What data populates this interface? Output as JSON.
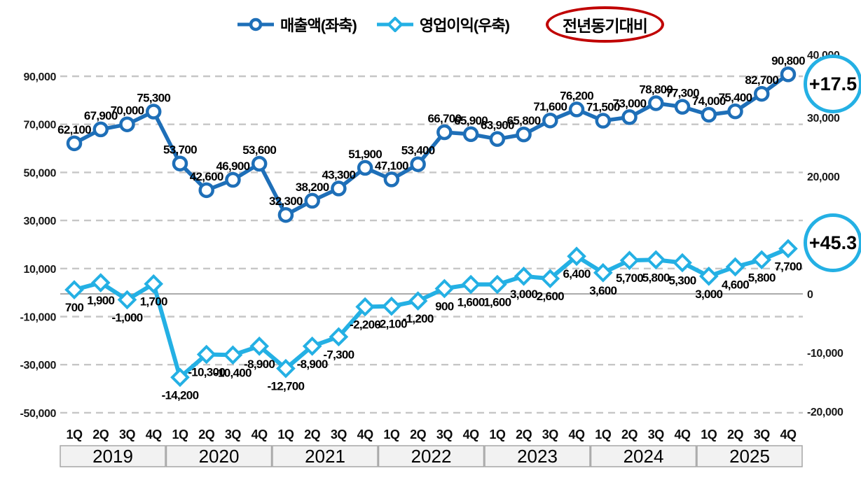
{
  "legend": {
    "series1_label": "매출액(좌축)",
    "series2_label": "영업이익(우축)",
    "yoy_oval_label": "전년동기대비"
  },
  "badges": {
    "revenue_yoy": "+17.5",
    "profit_yoy": "+45.3"
  },
  "colors": {
    "revenue_line": "#1e6fb8",
    "profit_line": "#24b0e4",
    "gridline": "#c6c6c6",
    "zero_line": "#ababab",
    "year_band_fill": "#f2f2f2",
    "year_band_border": "#a6a6a6",
    "yoy_oval_border": "#c00000",
    "badge_border": "#24b0e4"
  },
  "chart_data": {
    "type": "line",
    "title": "",
    "legend_position": "top",
    "grid": "dashed-horizontal",
    "quarters": [
      "1Q",
      "2Q",
      "3Q",
      "4Q"
    ],
    "years": [
      "2019",
      "2020",
      "2021",
      "2022",
      "2023",
      "2024",
      "2025"
    ],
    "left_axis": {
      "ticks": [
        90000,
        70000,
        50000,
        30000,
        10000,
        -10000,
        -30000,
        -50000
      ],
      "range": [
        -50000,
        90000
      ]
    },
    "right_axis": {
      "ticks": [
        40000,
        30000,
        20000,
        10000,
        0,
        -10000,
        -20000
      ],
      "range": [
        -20000,
        40000
      ]
    },
    "series": [
      {
        "name": "매출액(좌축)",
        "axis": "left",
        "marker": "circle",
        "color": "#1e6fb8",
        "values": [
          62100,
          67900,
          70000,
          75300,
          53700,
          42600,
          46900,
          53600,
          32300,
          38200,
          43300,
          51900,
          47100,
          53400,
          66700,
          65900,
          63900,
          65800,
          71600,
          76200,
          71500,
          73000,
          78800,
          77300,
          74000,
          75400,
          82700,
          90800
        ],
        "yoy_label": "+17.5"
      },
      {
        "name": "영업이익(우축)",
        "axis": "right",
        "marker": "diamond",
        "color": "#24b0e4",
        "values": [
          700,
          1900,
          -1000,
          1700,
          -14200,
          -10300,
          -10400,
          -8900,
          -12700,
          -8900,
          -7300,
          -2200,
          -2100,
          -1200,
          900,
          1600,
          1600,
          3000,
          2600,
          6400,
          3600,
          5700,
          5800,
          5300,
          3000,
          4600,
          5800,
          7700
        ],
        "yoy_label": "+45.3"
      }
    ]
  }
}
